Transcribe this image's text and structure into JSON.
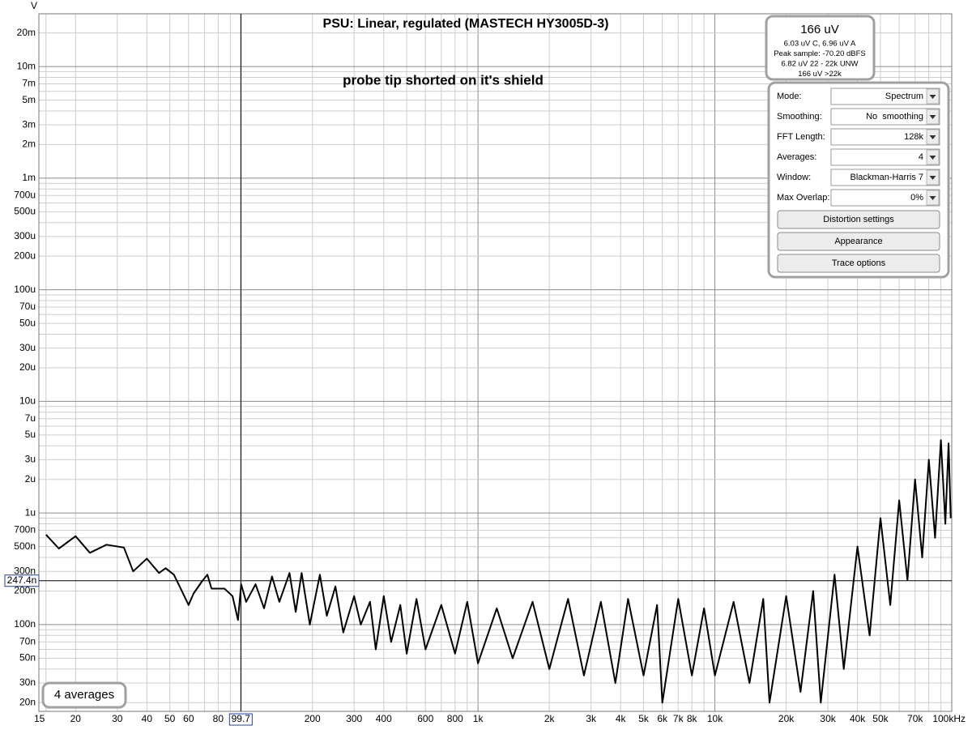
{
  "chart_data": {
    "type": "line",
    "title": "PSU: Linear, regulated (MASTECH HY3005D-3)",
    "annotation": "probe tip shorted on it's shield",
    "y_unit": "V",
    "x_log": true,
    "y_log": true,
    "grid": true,
    "color": "#000000",
    "xlim": [
      14,
      100000
    ],
    "ylim": [
      1.67e-08,
      0.0297
    ],
    "xticks": [
      15,
      20,
      30,
      40,
      50,
      60,
      80,
      200,
      300,
      400,
      600,
      800,
      {
        "value": 1000,
        "label": "1k"
      },
      {
        "value": 2000,
        "label": "2k"
      },
      {
        "value": 3000,
        "label": "3k"
      },
      {
        "value": 4000,
        "label": "4k"
      },
      {
        "value": 5000,
        "label": "5k"
      },
      {
        "value": 6000,
        "label": "6k"
      },
      {
        "value": 7000,
        "label": "7k"
      },
      {
        "value": 8000,
        "label": "8k"
      },
      {
        "value": 10000,
        "label": "10k"
      },
      {
        "value": 20000,
        "label": "20k"
      },
      {
        "value": 30000,
        "label": "30k"
      },
      {
        "value": 40000,
        "label": "40k"
      },
      {
        "value": 50000,
        "label": "50k"
      },
      {
        "value": 70000,
        "label": "70k"
      },
      {
        "value": 100000,
        "label": "100kHz"
      }
    ],
    "xminor": [
      70,
      90,
      100,
      500,
      700,
      900,
      9000,
      60000,
      80000,
      90000
    ],
    "yticks": [
      {
        "value": 0.02,
        "label": "20m"
      },
      {
        "value": 0.01,
        "label": "10m"
      },
      {
        "value": 0.007,
        "label": "7m"
      },
      {
        "value": 0.005,
        "label": "5m"
      },
      {
        "value": 0.003,
        "label": "3m"
      },
      {
        "value": 0.002,
        "label": "2m"
      },
      {
        "value": 0.001,
        "label": "1m"
      },
      {
        "value": 0.0007,
        "label": "700u"
      },
      {
        "value": 0.0005,
        "label": "500u"
      },
      {
        "value": 0.0003,
        "label": "300u"
      },
      {
        "value": 0.0002,
        "label": "200u"
      },
      {
        "value": 0.0001,
        "label": "100u"
      },
      {
        "value": 7e-05,
        "label": "70u"
      },
      {
        "value": 5e-05,
        "label": "50u"
      },
      {
        "value": 3e-05,
        "label": "30u"
      },
      {
        "value": 2e-05,
        "label": "20u"
      },
      {
        "value": 1e-05,
        "label": "10u"
      },
      {
        "value": 7e-06,
        "label": "7u"
      },
      {
        "value": 5e-06,
        "label": "5u"
      },
      {
        "value": 3e-06,
        "label": "3u"
      },
      {
        "value": 2e-06,
        "label": "2u"
      },
      {
        "value": 1e-06,
        "label": "1u"
      },
      {
        "value": 7e-07,
        "label": "700n"
      },
      {
        "value": 5e-07,
        "label": "500n"
      },
      {
        "value": 3e-07,
        "label": "300n"
      },
      {
        "value": 2e-07,
        "label": "200n"
      },
      {
        "value": 1e-07,
        "label": "100n"
      },
      {
        "value": 7e-08,
        "label": "70n"
      },
      {
        "value": 5e-08,
        "label": "50n"
      },
      {
        "value": 3e-08,
        "label": "30n"
      },
      {
        "value": 2e-08,
        "label": "20n"
      }
    ],
    "yminor": [
      0.009,
      0.008,
      0.006,
      0.004,
      0.0009,
      0.0008,
      0.0006,
      0.0004,
      9e-05,
      8e-05,
      6e-05,
      4e-05,
      9e-06,
      8e-06,
      6e-06,
      4e-06,
      9e-07,
      8e-07,
      6e-07,
      4e-07,
      9e-08,
      8e-08,
      6e-08,
      4e-08
    ],
    "cursor": {
      "x": {
        "value": 99.7,
        "label": "99.7"
      },
      "y": {
        "value": 2.474e-07,
        "label": "247.4n"
      }
    },
    "x": [
      15,
      17,
      20,
      23,
      27,
      32,
      35,
      40,
      45,
      48,
      52,
      55,
      60,
      63,
      68,
      72,
      75,
      85,
      92,
      97,
      100,
      105,
      115,
      125,
      135,
      145,
      160,
      170,
      180,
      195,
      215,
      230,
      250,
      270,
      300,
      320,
      350,
      370,
      400,
      430,
      470,
      500,
      550,
      600,
      700,
      800,
      900,
      1000,
      1200,
      1400,
      1700,
      2000,
      2400,
      2800,
      3300,
      3800,
      4300,
      5000,
      5700,
      6000,
      7000,
      8000,
      9000,
      10000,
      12000,
      14000,
      16000,
      17000,
      20000,
      23000,
      26000,
      28000,
      32000,
      35000,
      40000,
      45000,
      50000,
      55000,
      60000,
      65000,
      70000,
      75000,
      80000,
      85000,
      90000,
      94000,
      97000,
      99000
    ],
    "values": [
      6.4e-07,
      4.8e-07,
      6.2e-07,
      4.4e-07,
      5.2e-07,
      4.9e-07,
      3e-07,
      3.9e-07,
      2.9e-07,
      3.2e-07,
      2.8e-07,
      2.2e-07,
      1.5e-07,
      1.9e-07,
      2.4e-07,
      2.8e-07,
      2.1e-07,
      2.1e-07,
      1.8e-07,
      1.1e-07,
      2.3e-07,
      1.6e-07,
      2.3e-07,
      1.4e-07,
      2.7e-07,
      1.6e-07,
      2.9e-07,
      1.3e-07,
      2.9e-07,
      1e-07,
      2.8e-07,
      1.2e-07,
      2.2e-07,
      8.5e-08,
      1.8e-07,
      1e-07,
      1.6e-07,
      6e-08,
      1.8e-07,
      7e-08,
      1.5e-07,
      5.5e-08,
      1.7e-07,
      6e-08,
      1.5e-07,
      5.5e-08,
      1.6e-07,
      4.5e-08,
      1.4e-07,
      5e-08,
      1.6e-07,
      4e-08,
      1.7e-07,
      3.5e-08,
      1.6e-07,
      3e-08,
      1.7e-07,
      3.5e-08,
      1.5e-07,
      2e-08,
      1.7e-07,
      3.5e-08,
      1.4e-07,
      3.5e-08,
      1.6e-07,
      3e-08,
      1.7e-07,
      2e-08,
      1.8e-07,
      2.5e-08,
      2e-07,
      2e-08,
      2.8e-07,
      4e-08,
      5e-07,
      8e-08,
      9e-07,
      1.5e-07,
      1.3e-06,
      2.5e-07,
      2e-06,
      4e-07,
      3e-06,
      6e-07,
      4.5e-06,
      8e-07,
      4.2e-06,
      9e-07
    ]
  },
  "readout": {
    "main": "166 uV",
    "lines": [
      "6.03 uV C, 6.96 uV A",
      "Peak sample: -70.20 dBFS",
      "6.82 uV 22 - 22k UNW",
      "166 uV >22k"
    ]
  },
  "panel": {
    "rows": [
      {
        "label": "Mode:",
        "value": "Spectrum"
      },
      {
        "label": "Smoothing:",
        "value": "No  smoothing"
      },
      {
        "label": "FFT Length:",
        "value": "128k"
      },
      {
        "label": "Averages:",
        "value": "4"
      },
      {
        "label": "Window:",
        "value": "Blackman-Harris 7"
      },
      {
        "label": "Max Overlap:",
        "value": "0%"
      }
    ],
    "buttons": [
      "Distortion settings",
      "Appearance",
      "Trace options"
    ]
  },
  "status": "4 averages"
}
